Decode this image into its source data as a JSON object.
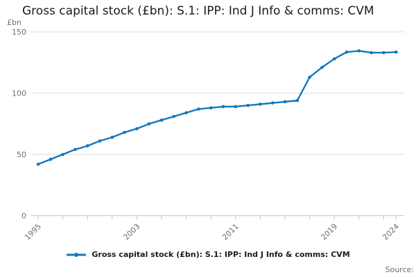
{
  "title": "Gross capital stock (£bn): S.1: IPP: Ind J Info & comms: CVM",
  "unit_label": "£bn",
  "source_label": "Source:",
  "legend": {
    "label": "Gross capital stock (£bn): S.1: IPP: Ind J Info & comms: CVM"
  },
  "colors": {
    "series": "#1078bc",
    "grid": "#dedede",
    "axis": "#b9c7e2",
    "tick_label": "#6d6e70"
  },
  "chart_data": {
    "type": "line",
    "title": "Gross capital stock (£bn): S.1: IPP: Ind J Info & comms: CVM",
    "ylabel": "£bn",
    "xlabel": "",
    "ylim": [
      0,
      150
    ],
    "yticks": [
      0,
      50,
      100,
      150
    ],
    "grid": "horizontal",
    "legend_position": "bottom",
    "marker": "circle",
    "x": [
      1995,
      1996,
      1997,
      1998,
      1999,
      2000,
      2001,
      2002,
      2003,
      2004,
      2005,
      2006,
      2007,
      2008,
      2009,
      2010,
      2011,
      2012,
      2013,
      2014,
      2015,
      2016,
      2017,
      2018,
      2019,
      2020,
      2021,
      2022,
      2023,
      2024
    ],
    "series": [
      {
        "name": "Gross capital stock (£bn): S.1: IPP: Ind J Info & comms: CVM",
        "values": [
          42,
          46,
          50,
          54,
          57,
          61,
          64,
          68,
          71,
          75,
          78,
          81,
          84,
          87,
          88,
          89,
          89,
          90,
          91,
          92,
          93,
          94,
          113,
          121,
          128,
          133.5,
          134.5,
          133,
          133,
          133.5
        ]
      }
    ],
    "xticks_minor": [
      1995,
      1997,
      1999,
      2001,
      2003,
      2005,
      2007,
      2009,
      2011,
      2013,
      2015,
      2017,
      2019,
      2021,
      2023,
      2024
    ],
    "xticks_labeled": [
      1995,
      2003,
      2011,
      2019,
      2024
    ]
  }
}
